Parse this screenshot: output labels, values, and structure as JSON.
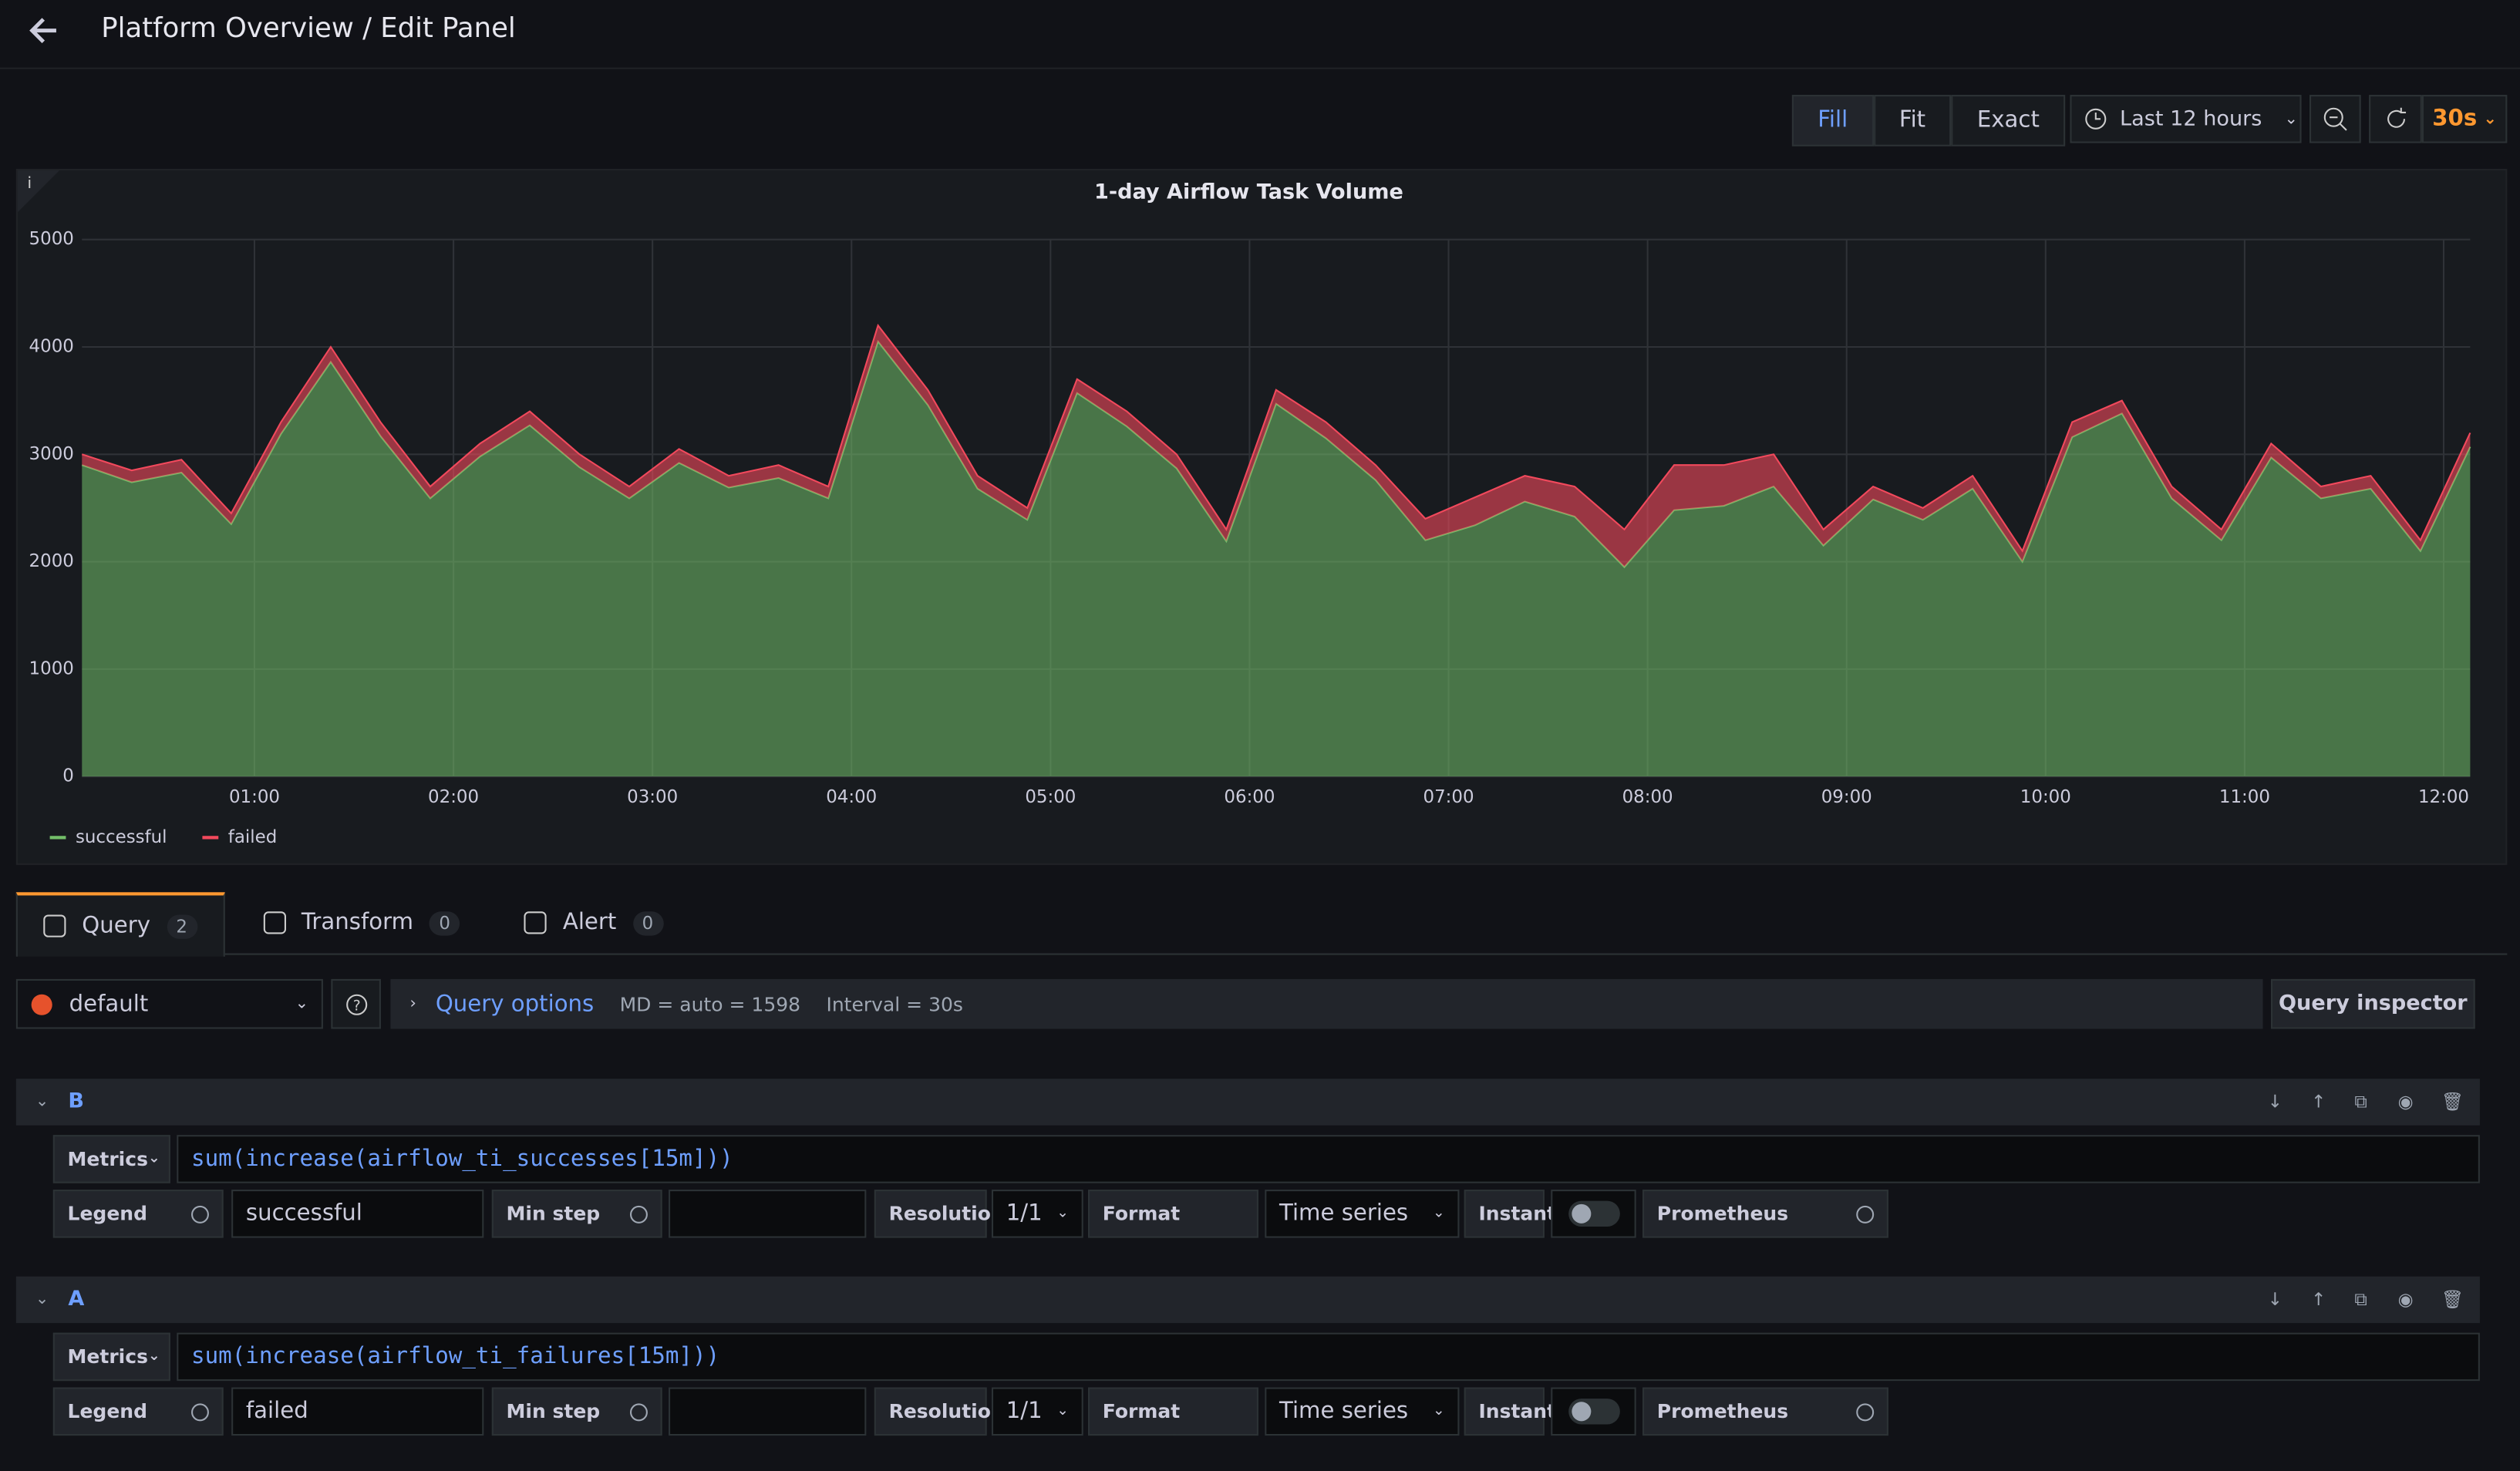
{
  "header": {
    "title": "Platform Overview / Edit Panel"
  },
  "toolbar": {
    "modes": [
      "Fill",
      "Fit",
      "Exact"
    ],
    "active_mode": "Fill",
    "time_range": "Last 12 hours",
    "refresh_interval": "30s"
  },
  "chart_data": {
    "type": "area",
    "stacked": true,
    "title": "1-day Airflow Task Volume",
    "x": [
      8,
      23,
      38,
      53,
      68,
      83,
      98,
      113,
      128,
      143,
      158,
      173,
      188,
      203,
      218,
      233,
      248,
      263,
      278,
      293,
      308,
      323,
      338,
      353,
      368,
      383,
      398,
      413,
      428,
      443,
      458,
      473,
      488,
      503,
      518,
      533,
      548,
      563,
      578,
      593,
      608,
      623,
      638,
      653,
      668,
      683,
      698,
      713,
      728
    ],
    "xlim": [
      8,
      728
    ],
    "xticks": [
      {
        "value": 60,
        "label": "01:00"
      },
      {
        "value": 120,
        "label": "02:00"
      },
      {
        "value": 180,
        "label": "03:00"
      },
      {
        "value": 240,
        "label": "04:00"
      },
      {
        "value": 300,
        "label": "05:00"
      },
      {
        "value": 360,
        "label": "06:00"
      },
      {
        "value": 420,
        "label": "07:00"
      },
      {
        "value": 480,
        "label": "08:00"
      },
      {
        "value": 540,
        "label": "09:00"
      },
      {
        "value": 600,
        "label": "10:00"
      },
      {
        "value": 660,
        "label": "11:00"
      },
      {
        "value": 720,
        "label": "12:00"
      }
    ],
    "ylim": [
      0,
      5000
    ],
    "yticks": [
      0,
      1000,
      2000,
      3000,
      4000,
      5000
    ],
    "grid": true,
    "legend_position": "bottom-left",
    "series": [
      {
        "name": "successful",
        "color": "#73bf69",
        "values": [
          2900,
          2740,
          2830,
          2350,
          3190,
          3860,
          3170,
          2590,
          2980,
          3270,
          2880,
          2590,
          2920,
          2690,
          2780,
          2590,
          4050,
          3460,
          2680,
          2390,
          3570,
          3260,
          2870,
          2190,
          3470,
          3150,
          2760,
          2200,
          2340,
          2560,
          2420,
          1950,
          2480,
          2520,
          2700,
          2150,
          2580,
          2390,
          2680,
          2000,
          3160,
          3380,
          2590,
          2200,
          2970,
          2590,
          2680,
          2100,
          3070
        ]
      },
      {
        "name": "failed",
        "color": "#f2495c",
        "values": [
          100,
          110,
          120,
          100,
          110,
          140,
          130,
          110,
          120,
          130,
          120,
          110,
          130,
          110,
          120,
          110,
          150,
          140,
          120,
          110,
          130,
          140,
          130,
          110,
          130,
          150,
          140,
          200,
          260,
          240,
          280,
          350,
          420,
          380,
          300,
          150,
          120,
          110,
          120,
          100,
          140,
          120,
          110,
          100,
          130,
          110,
          120,
          100,
          130
        ]
      }
    ]
  },
  "tabs": [
    {
      "label": "Query",
      "count": 2
    },
    {
      "label": "Transform",
      "count": 0
    },
    {
      "label": "Alert",
      "count": 0
    }
  ],
  "query_bar": {
    "datasource": "default",
    "options_label": "Query options",
    "max_data_points": "MD = auto = 1598",
    "interval": "Interval = 30s",
    "inspector": "Query inspector"
  },
  "field_labels": {
    "metrics": "Metrics",
    "legend": "Legend",
    "min_step": "Min step",
    "resolution": "Resolution",
    "format": "Format",
    "instant": "Instant",
    "source": "Prometheus"
  },
  "queries": [
    {
      "ref": "B",
      "expr": "sum(increase(airflow_ti_successes[15m]))",
      "legend": "successful",
      "resolution": "1/1",
      "format": "Time series",
      "instant": false
    },
    {
      "ref": "A",
      "expr": "sum(increase(airflow_ti_failures[15m]))",
      "legend": "failed",
      "resolution": "1/1",
      "format": "Time series",
      "instant": false
    }
  ]
}
